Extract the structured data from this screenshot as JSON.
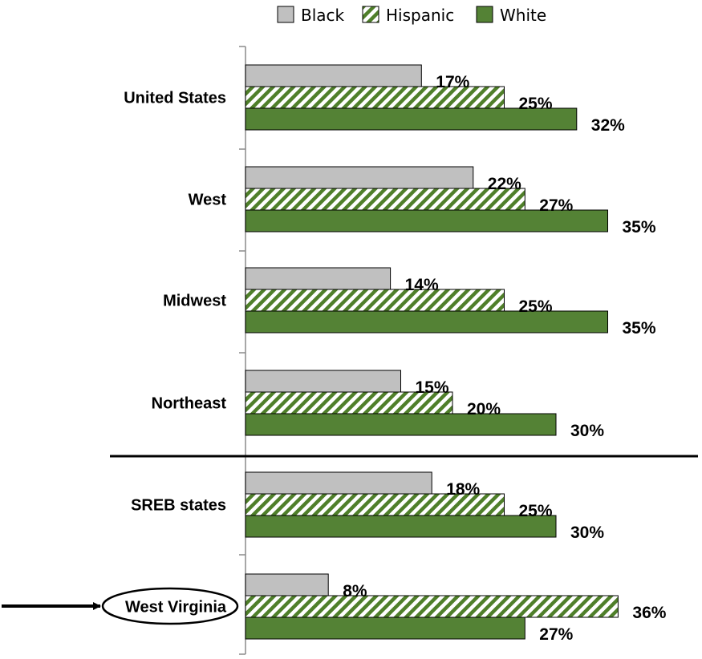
{
  "chart_data": {
    "type": "bar",
    "orientation": "horizontal",
    "categories": [
      "United States",
      "West",
      "Midwest",
      "Northeast",
      "SREB states",
      "West Virginia"
    ],
    "series": [
      {
        "name": "Black",
        "values": [
          17,
          22,
          14,
          15,
          18,
          8
        ],
        "color": "#c0c0c0",
        "pattern": "solid"
      },
      {
        "name": "Hispanic",
        "values": [
          25,
          27,
          25,
          20,
          25,
          36
        ],
        "color": "#4f7f2a",
        "pattern": "diagonal-hatch"
      },
      {
        "name": "White",
        "values": [
          32,
          35,
          35,
          30,
          30,
          27
        ],
        "color": "#548235",
        "pattern": "solid"
      }
    ],
    "value_suffix": "%",
    "legend_position": "top",
    "highlighted_category": "West Virginia",
    "separator_after_category": "Northeast"
  }
}
